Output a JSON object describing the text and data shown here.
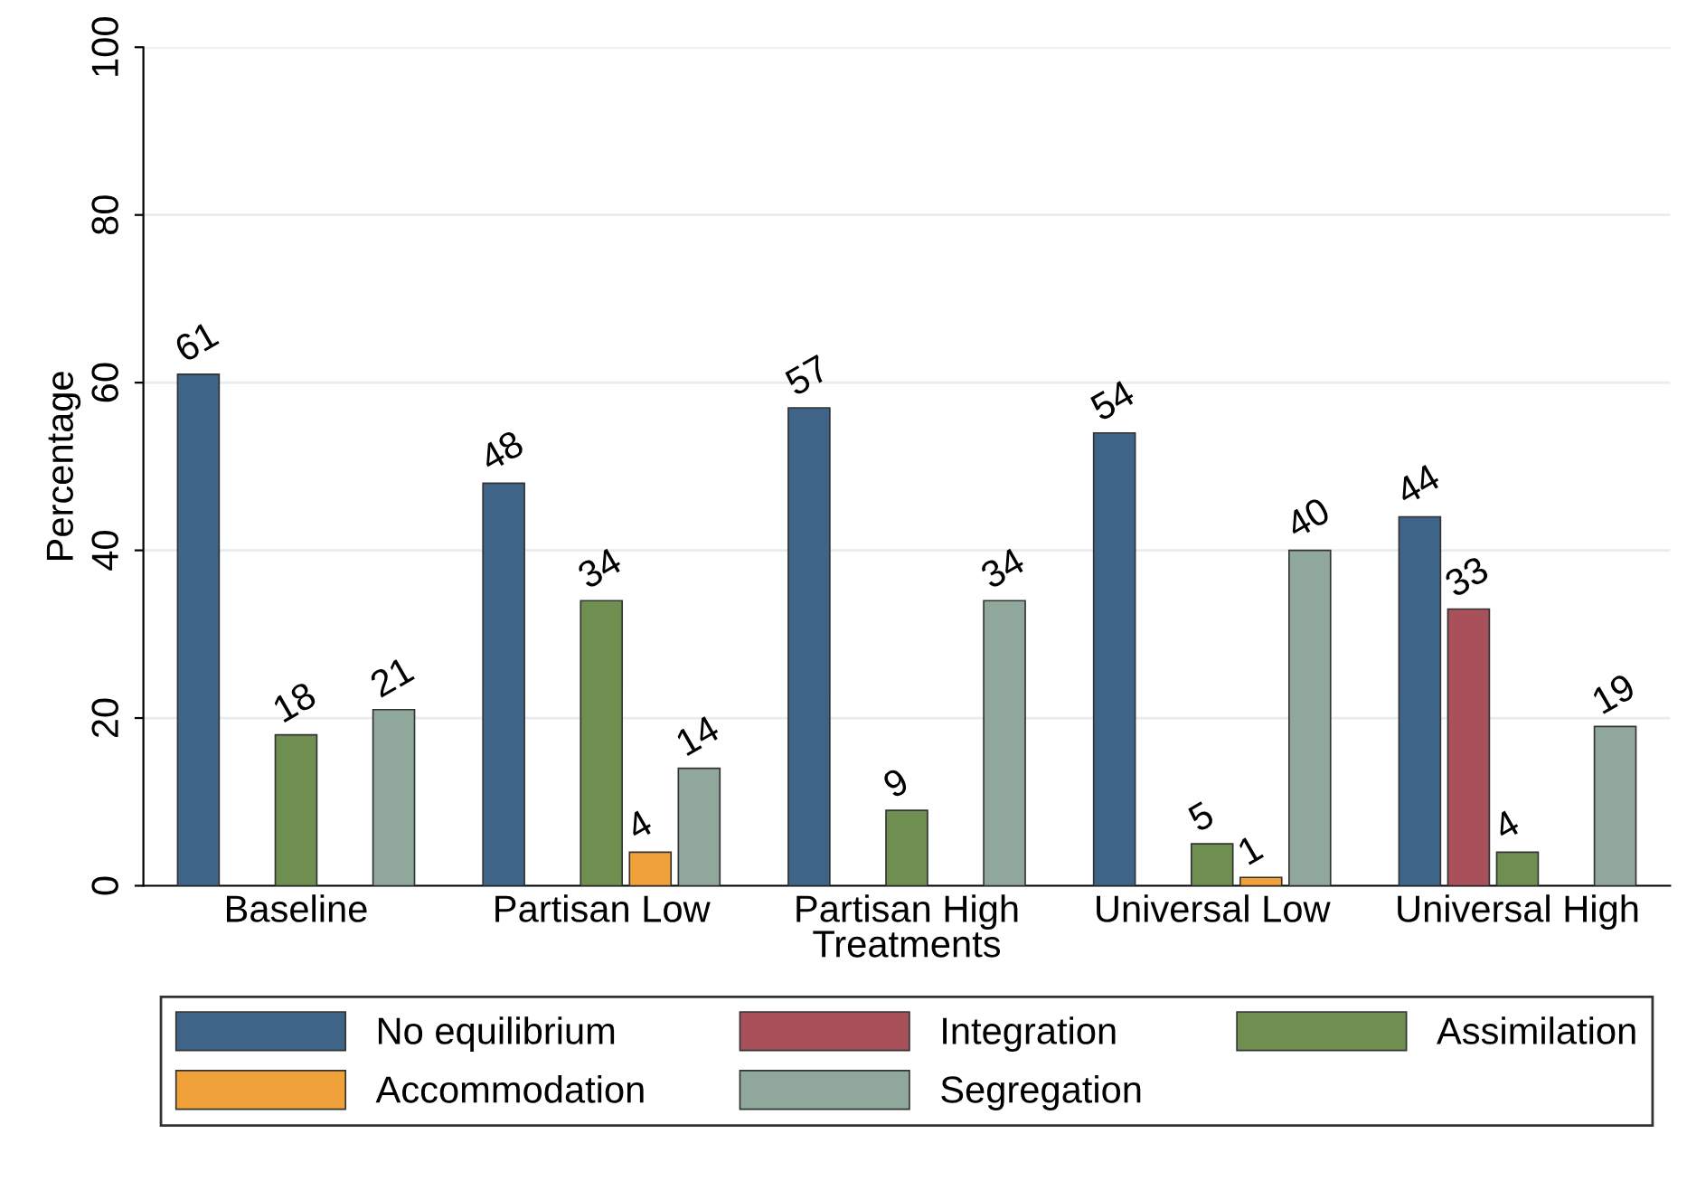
{
  "chart_data": {
    "type": "bar",
    "xlabel": "Treatments",
    "ylabel": "Percentage",
    "categories": [
      "Baseline",
      "Partisan Low",
      "Partisan High",
      "Universal Low",
      "Universal High"
    ],
    "series": [
      {
        "name": "No equilibrium",
        "color": "#3e6487",
        "values": [
          61,
          48,
          57,
          54,
          44
        ]
      },
      {
        "name": "Integration",
        "color": "#a8515a",
        "values": [
          null,
          null,
          null,
          null,
          33
        ]
      },
      {
        "name": "Assimilation",
        "color": "#6e8f4f",
        "values": [
          18,
          34,
          9,
          5,
          4
        ]
      },
      {
        "name": "Accommodation",
        "color": "#f0a13a",
        "values": [
          null,
          4,
          null,
          1,
          null
        ]
      },
      {
        "name": "Segregation",
        "color": "#8fa89b",
        "values": [
          21,
          14,
          34,
          40,
          19
        ]
      }
    ],
    "ylim": [
      0,
      100
    ],
    "yticks": [
      0,
      20,
      40,
      60,
      80,
      100
    ],
    "grid": "y",
    "legend": "bottom",
    "data_labels": true
  }
}
